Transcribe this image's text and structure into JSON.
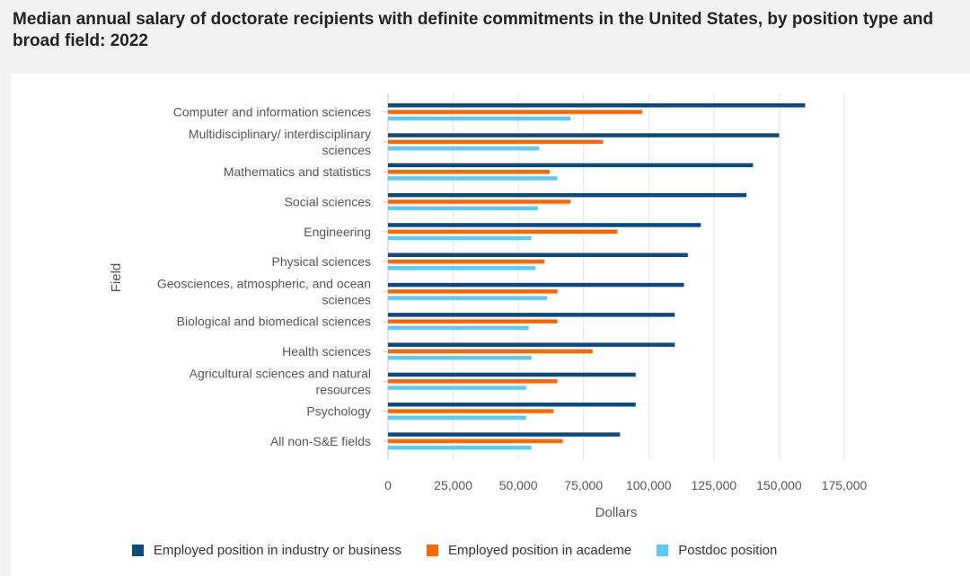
{
  "title": "Median annual salary of doctorate recipients with definite commitments in the United States, by position type and broad field: 2022",
  "chart_data": {
    "type": "bar",
    "orientation": "horizontal",
    "title": "Median annual salary of doctorate recipients with definite commitments in the United States, by position type and broad field: 2022",
    "xlabel": "Dollars",
    "ylabel": "Field",
    "xlim": [
      0,
      175000
    ],
    "xticks": [
      0,
      25000,
      50000,
      75000,
      100000,
      125000,
      150000,
      175000
    ],
    "xtick_labels": [
      "0",
      "25,000",
      "50,000",
      "75,000",
      "100,000",
      "125,000",
      "150,000",
      "175,000"
    ],
    "grid": "vertical",
    "legend_position": "bottom",
    "categories": [
      [
        "Computer and information sciences"
      ],
      [
        "Multidisciplinary/ interdisciplinary",
        "sciences"
      ],
      [
        "Mathematics and statistics"
      ],
      [
        "Social sciences"
      ],
      [
        "Engineering"
      ],
      [
        "Physical sciences"
      ],
      [
        "Geosciences, atmospheric, and ocean",
        "sciences"
      ],
      [
        "Biological and biomedical sciences"
      ],
      [
        "Health sciences"
      ],
      [
        "Agricultural sciences and natural",
        "resources"
      ],
      [
        "Psychology"
      ],
      [
        "All non-S&E fields"
      ]
    ],
    "series": [
      {
        "name": "Employed position in industry or business",
        "color": "#0b4a7e",
        "values": [
          160000,
          150000,
          140000,
          137500,
          120000,
          115000,
          113500,
          110000,
          110000,
          95000,
          95000,
          89000
        ]
      },
      {
        "name": "Employed position in academe",
        "color": "#ff6600",
        "values": [
          97500,
          82500,
          62000,
          70000,
          88000,
          60000,
          65000,
          65000,
          78500,
          65000,
          63500,
          67000
        ]
      },
      {
        "name": "Postdoc position",
        "color": "#5bcbf5",
        "values": [
          70000,
          58000,
          65000,
          57500,
          55000,
          56500,
          61000,
          54000,
          55000,
          53000,
          53000,
          55000
        ]
      }
    ]
  }
}
